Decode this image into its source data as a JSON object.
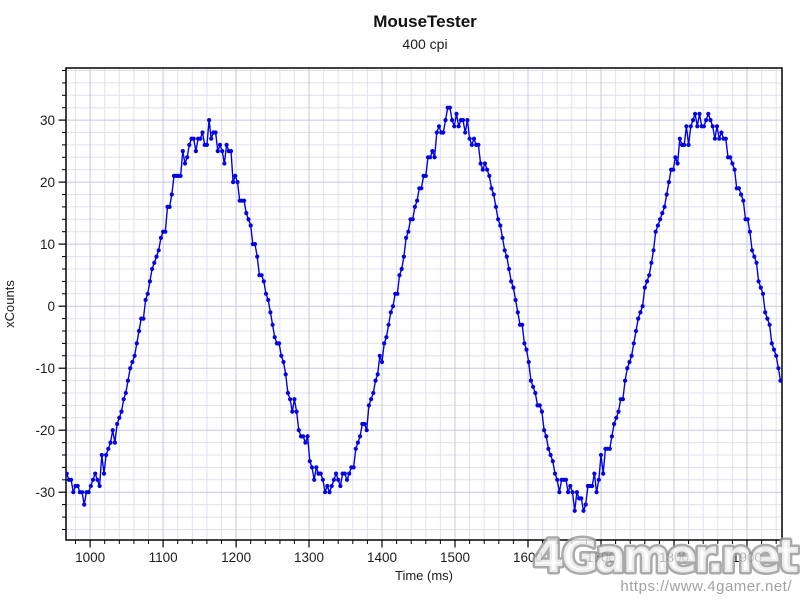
{
  "header": {
    "title": "MouseTester",
    "subtitle": "400 cpi"
  },
  "chart_data": {
    "type": "line",
    "title": "MouseTester",
    "subtitle": "400 cpi",
    "xlabel": "Time (ms)",
    "ylabel": "xCounts",
    "xlim": [
      967,
      1948
    ],
    "ylim": [
      -37.7,
      38.4
    ],
    "x_major_ticks": [
      1000,
      1100,
      1200,
      1300,
      1400,
      1500,
      1600,
      1700,
      1800,
      1900
    ],
    "x_minor_step": 20,
    "y_major_ticks": [
      -30,
      -20,
      -10,
      0,
      10,
      20,
      30
    ],
    "y_minor_step": 2,
    "grid": {
      "on": true,
      "minor_color": "#e0e0f1",
      "major_color": "#c7c7e6"
    },
    "axis_color": "#000000",
    "line_color": "#0202e6",
    "marker": "circle",
    "marker_radius": 2.1,
    "legend": null,
    "series": [
      {
        "name": "xCounts",
        "waveform": "sine",
        "sample_interval_ms": 3,
        "t_start_ms": 968,
        "t_end_ms": 1948,
        "period_ms": 340,
        "rising_zero_crossing_ms": 1075,
        "extrema_points": [
          [
            988,
            -30
          ],
          [
            1160,
            27.5
          ],
          [
            1322,
            -28.5
          ],
          [
            1502,
            31
          ],
          [
            1672,
            -31
          ],
          [
            1840,
            30.5
          ]
        ],
        "end_value_counts": -13,
        "noise_counts_base": 0.5,
        "noise_counts_peak": 1.7,
        "values_quantized_to_integer_counts": true,
        "prng_seed": 11
      }
    ]
  },
  "watermark": {
    "logo": "4Gamer.net",
    "url": "https://www.4gamer.net/",
    "color": "#9c9c9c",
    "fill": "rgba(255,255,255,0.78)"
  }
}
